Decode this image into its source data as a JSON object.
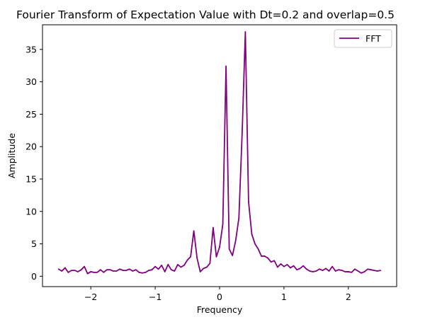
{
  "chart_data": {
    "type": "line",
    "title": "Fourier Transform of Expectation Value with Dt=0.2 and overlap=0.5",
    "xlabel": "Frequency",
    "ylabel": "Amplitude",
    "xlim": [
      -2.75,
      2.75
    ],
    "ylim": [
      -1.6,
      38.8
    ],
    "xticks": [
      -2,
      -1,
      0,
      1,
      2
    ],
    "xtick_labels": [
      "−2",
      "−1",
      "0",
      "1",
      "2"
    ],
    "yticks": [
      0,
      5,
      10,
      15,
      20,
      25,
      30,
      35
    ],
    "ytick_labels": [
      "0",
      "5",
      "10",
      "15",
      "20",
      "25",
      "30",
      "35"
    ],
    "grid": false,
    "legend_position": "top-right",
    "series": [
      {
        "name": "FFT",
        "color": "#800080",
        "x": [
          -2.5,
          -2.45,
          -2.4,
          -2.35,
          -2.3,
          -2.25,
          -2.2,
          -2.15,
          -2.1,
          -2.05,
          -2.0,
          -1.95,
          -1.9,
          -1.85,
          -1.8,
          -1.75,
          -1.7,
          -1.65,
          -1.6,
          -1.55,
          -1.5,
          -1.45,
          -1.4,
          -1.35,
          -1.3,
          -1.25,
          -1.2,
          -1.15,
          -1.1,
          -1.05,
          -1.0,
          -0.95,
          -0.9,
          -0.85,
          -0.8,
          -0.75,
          -0.7,
          -0.65,
          -0.6,
          -0.55,
          -0.5,
          -0.45,
          -0.4,
          -0.35,
          -0.3,
          -0.25,
          -0.2,
          -0.15,
          -0.1,
          -0.05,
          0.0,
          0.05,
          0.1,
          0.15,
          0.2,
          0.25,
          0.3,
          0.35,
          0.4,
          0.45,
          0.5,
          0.55,
          0.6,
          0.65,
          0.7,
          0.75,
          0.8,
          0.85,
          0.9,
          0.95,
          1.0,
          1.05,
          1.1,
          1.15,
          1.2,
          1.25,
          1.3,
          1.35,
          1.4,
          1.45,
          1.5,
          1.55,
          1.6,
          1.65,
          1.7,
          1.75,
          1.8,
          1.85,
          1.9,
          1.95,
          2.0,
          2.05,
          2.1,
          2.15,
          2.2,
          2.25,
          2.3,
          2.35,
          2.4,
          2.45,
          2.5
        ],
        "y": [
          1.1,
          0.8,
          1.3,
          0.6,
          0.9,
          0.9,
          0.7,
          1.0,
          1.5,
          0.4,
          0.7,
          0.6,
          0.6,
          1.0,
          0.6,
          1.0,
          1.0,
          0.8,
          0.8,
          1.1,
          0.9,
          0.9,
          1.1,
          0.8,
          1.0,
          0.6,
          0.5,
          0.6,
          0.9,
          1.0,
          1.5,
          1.1,
          1.7,
          0.7,
          1.8,
          1.0,
          0.8,
          1.8,
          1.4,
          1.7,
          2.5,
          3.0,
          7.0,
          2.8,
          0.7,
          1.2,
          1.4,
          2.0,
          7.5,
          3.0,
          4.5,
          8.0,
          32.4,
          4.2,
          3.2,
          5.5,
          9.0,
          22.0,
          37.7,
          11.5,
          6.5,
          5.0,
          4.2,
          3.1,
          3.1,
          2.8,
          2.2,
          2.4,
          1.4,
          1.9,
          1.5,
          1.8,
          1.3,
          1.6,
          1.0,
          1.2,
          1.6,
          1.1,
          0.8,
          0.7,
          0.8,
          1.1,
          0.9,
          1.2,
          0.8,
          1.5,
          0.8,
          1.0,
          0.9,
          0.7,
          0.7,
          0.6,
          1.1,
          0.8,
          0.5,
          0.7,
          1.1,
          1.0,
          0.9,
          0.8,
          0.9
        ]
      }
    ]
  }
}
